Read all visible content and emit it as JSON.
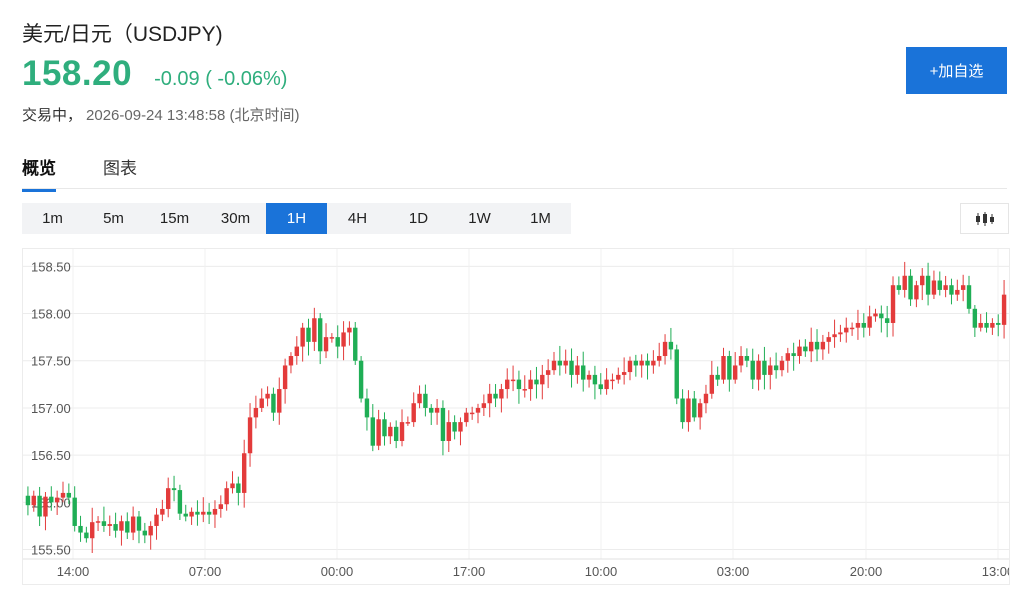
{
  "header": {
    "title": "美元/日元（USDJPY)",
    "price": "158.20",
    "change": "-0.09 ( -0.06%)",
    "status_label": "交易中，",
    "timestamp": "2026-09-24 13:48:58 (北京时间)"
  },
  "add_button": {
    "label": "+加自选"
  },
  "tabs": [
    {
      "label": "概览"
    },
    {
      "label": "图表"
    }
  ],
  "intervals": [
    "1m",
    "5m",
    "15m",
    "30m",
    "1H",
    "4H",
    "1D",
    "1W",
    "1M"
  ],
  "selected_interval": "1H",
  "colors": {
    "up": "#e33b3b",
    "down": "#1fae55",
    "accent": "#1a73d9",
    "price": "#2fae7d"
  },
  "chart_type_icon": "candlestick-icon",
  "chart_data": {
    "type": "candlestick",
    "ylim": [
      155.4,
      158.62
    ],
    "y_ticks": [
      "158.50",
      "158.00",
      "157.50",
      "157.00",
      "156.50",
      "156.00",
      "155.50"
    ],
    "x_ticks": [
      "14:00",
      "07:00",
      "00:00",
      "17:00",
      "10:00",
      "03:00",
      "20:00",
      "13:00"
    ],
    "grid": true,
    "closes": [
      155.97,
      156.07,
      155.85,
      156.06,
      156.0,
      156.05,
      156.1,
      156.05,
      155.75,
      155.68,
      155.62,
      155.79,
      155.8,
      155.75,
      155.77,
      155.7,
      155.8,
      155.68,
      155.85,
      155.7,
      155.65,
      155.75,
      155.87,
      155.93,
      156.15,
      156.13,
      155.88,
      155.85,
      155.9,
      155.87,
      155.9,
      155.87,
      155.93,
      155.98,
      156.15,
      156.2,
      156.1,
      156.52,
      156.9,
      157.0,
      157.1,
      157.15,
      156.95,
      157.2,
      157.45,
      157.55,
      157.65,
      157.85,
      157.7,
      157.95,
      157.6,
      157.75,
      157.75,
      157.65,
      157.8,
      157.85,
      157.5,
      157.1,
      156.9,
      156.6,
      156.88,
      156.7,
      156.8,
      156.65,
      156.85,
      156.85,
      157.05,
      157.15,
      157.0,
      156.95,
      157.0,
      156.65,
      156.85,
      156.75,
      156.85,
      156.95,
      156.95,
      157.0,
      157.05,
      157.15,
      157.1,
      157.2,
      157.3,
      157.3,
      157.2,
      157.2,
      157.3,
      157.25,
      157.35,
      157.4,
      157.5,
      157.45,
      157.5,
      157.35,
      157.45,
      157.3,
      157.35,
      157.25,
      157.2,
      157.3,
      157.3,
      157.35,
      157.38,
      157.5,
      157.45,
      157.5,
      157.45,
      157.5,
      157.55,
      157.7,
      157.62,
      157.1,
      156.85,
      157.1,
      156.9,
      157.05,
      157.15,
      157.35,
      157.3,
      157.55,
      157.3,
      157.45,
      157.55,
      157.5,
      157.3,
      157.5,
      157.35,
      157.45,
      157.4,
      157.5,
      157.58,
      157.55,
      157.65,
      157.6,
      157.7,
      157.62,
      157.7,
      157.75,
      157.78,
      157.8,
      157.85,
      157.85,
      157.9,
      157.85,
      157.97,
      158.0,
      157.95,
      157.9,
      158.3,
      158.25,
      158.4,
      158.15,
      158.3,
      158.4,
      158.2,
      158.35,
      158.25,
      158.3,
      158.2,
      158.25,
      158.3,
      158.05,
      157.85,
      157.9,
      157.85,
      157.9,
      157.88,
      158.2
    ]
  }
}
